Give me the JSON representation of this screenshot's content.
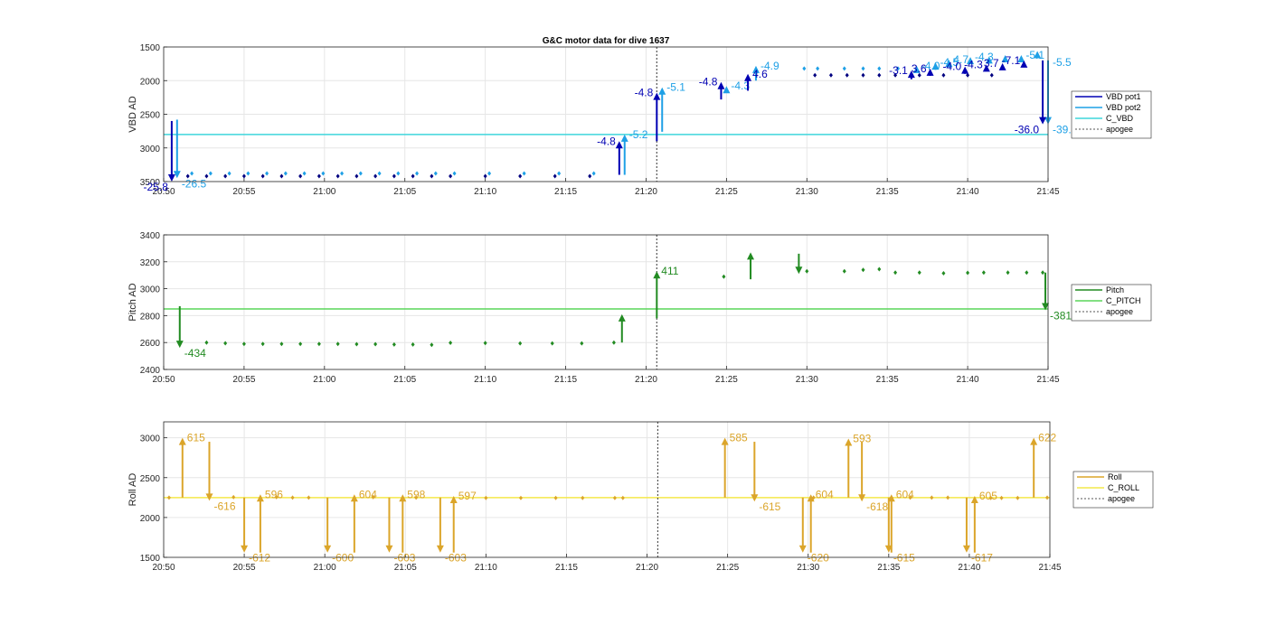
{
  "chart_data": [
    {
      "type": "scatter",
      "title": "G&C motor data for dive 1637",
      "ylabel": "VBD AD",
      "y_reversed": true,
      "ylim": [
        1500,
        3500
      ],
      "xlim": [
        "20:50",
        "21:45"
      ],
      "yticks": [
        1500,
        2000,
        2500,
        3000,
        3500
      ],
      "xticks": [
        "20:50",
        "20:55",
        "21:00",
        "21:05",
        "21:10",
        "21:15",
        "21:20",
        "21:25",
        "21:30",
        "21:35",
        "21:40",
        "21:45"
      ],
      "grid": true,
      "legend_position": "right",
      "legend": [
        "VBD pot1",
        "VBD pot2",
        "C_VBD",
        "apogee"
      ],
      "colors": {
        "pot1": "#0000b3",
        "pot2": "#1ea0e6",
        "c_line": "#3fd6dc",
        "apogee": "#555555",
        "dot_pot1": "#000080",
        "dot_pot2": "#1ea0e6"
      },
      "reference_line": 2800,
      "apogee_time": "21:20:40",
      "points_pot1": [
        [
          "20:51:30",
          3420
        ],
        [
          "20:52:40",
          3420
        ],
        [
          "20:53:50",
          3420
        ],
        [
          "20:55:00",
          3420
        ],
        [
          "20:56:10",
          3420
        ],
        [
          "20:57:20",
          3420
        ],
        [
          "20:58:30",
          3420
        ],
        [
          "20:59:40",
          3420
        ],
        [
          "21:00:50",
          3420
        ],
        [
          "21:02:00",
          3420
        ],
        [
          "21:03:10",
          3420
        ],
        [
          "21:04:20",
          3420
        ],
        [
          "21:05:30",
          3420
        ],
        [
          "21:06:40",
          3420
        ],
        [
          "21:07:50",
          3420
        ],
        [
          "21:10:00",
          3420
        ],
        [
          "21:12:10",
          3420
        ],
        [
          "21:14:20",
          3420
        ],
        [
          "21:16:30",
          3420
        ],
        [
          "21:30:30",
          1920
        ],
        [
          "21:31:30",
          1920
        ],
        [
          "21:32:30",
          1920
        ],
        [
          "21:33:30",
          1920
        ],
        [
          "21:34:30",
          1920
        ],
        [
          "21:35:30",
          1920
        ],
        [
          "21:37:00",
          1920
        ],
        [
          "21:38:30",
          1920
        ],
        [
          "21:40:00",
          1920
        ],
        [
          "21:41:30",
          1920
        ]
      ],
      "points_pot2": [
        [
          "20:51:45",
          3380
        ],
        [
          "20:52:55",
          3380
        ],
        [
          "20:54:05",
          3380
        ],
        [
          "20:55:15",
          3380
        ],
        [
          "20:56:25",
          3380
        ],
        [
          "20:57:35",
          3380
        ],
        [
          "20:58:45",
          3380
        ],
        [
          "20:59:55",
          3380
        ],
        [
          "21:01:05",
          3380
        ],
        [
          "21:02:15",
          3380
        ],
        [
          "21:03:25",
          3380
        ],
        [
          "21:04:35",
          3380
        ],
        [
          "21:05:45",
          3380
        ],
        [
          "21:06:55",
          3380
        ],
        [
          "21:08:05",
          3380
        ],
        [
          "21:10:15",
          3380
        ],
        [
          "21:12:25",
          3380
        ],
        [
          "21:14:35",
          3380
        ],
        [
          "21:16:45",
          3380
        ],
        [
          "21:29:50",
          1820
        ],
        [
          "21:30:40",
          1820
        ],
        [
          "21:32:20",
          1820
        ],
        [
          "21:33:30",
          1820
        ],
        [
          "21:34:30",
          1820
        ],
        [
          "21:35:40",
          1820
        ]
      ],
      "arrows_pot1": [
        {
          "t": "20:50:30",
          "from": 2600,
          "to": 3500,
          "label": "-25.8",
          "label_side": "left"
        },
        {
          "t": "21:18:20",
          "from": 3400,
          "to": 2900,
          "label": "-4.8",
          "label_side": "left"
        },
        {
          "t": "21:20:40",
          "from": 2900,
          "to": 2180,
          "label": "-4.8",
          "label_side": "left"
        },
        {
          "t": "21:24:40",
          "from": 2280,
          "to": 2020,
          "label": "-4.8",
          "label_side": "left"
        },
        {
          "t": "21:26:20",
          "from": 2150,
          "to": 1900,
          "label": "4.6",
          "label_side": "right"
        },
        {
          "t": "21:36:30",
          "from": 1980,
          "to": 1850,
          "label": "-3.1",
          "label_side": "left"
        },
        {
          "t": "21:37:40",
          "from": 1930,
          "to": 1820,
          "label": "3.6",
          "label_side": "left"
        },
        {
          "t": "21:39:50",
          "from": 1900,
          "to": 1790,
          "label": "-4.0",
          "label_side": "left"
        },
        {
          "t": "21:41:10",
          "from": 1850,
          "to": 1760,
          "label": "-4.3",
          "label_side": "left"
        },
        {
          "t": "21:42:10",
          "from": 1830,
          "to": 1740,
          "label": "3.7",
          "label_side": "left"
        },
        {
          "t": "21:43:30",
          "from": 1800,
          "to": 1700,
          "label": "-7.1",
          "label_side": "left"
        },
        {
          "t": "21:44:40",
          "from": 1700,
          "to": 2650,
          "label": "-36.0",
          "label_side": "left"
        }
      ],
      "arrows_pot2": [
        {
          "t": "20:50:50",
          "from": 2580,
          "to": 3450,
          "label": "-26.5",
          "label_side": "right"
        },
        {
          "t": "21:18:40",
          "from": 3400,
          "to": 2800,
          "label": "-5.2",
          "label_side": "right"
        },
        {
          "t": "21:21:00",
          "from": 2760,
          "to": 2100,
          "label": "-5.1",
          "label_side": "right"
        },
        {
          "t": "21:26:50",
          "from": 2000,
          "to": 1780,
          "label": "-4.9",
          "label_side": "right"
        },
        {
          "t": "21:25:00",
          "from": 2150,
          "to": 2080,
          "label": "-4.3",
          "label_side": "right"
        },
        {
          "t": "21:36:50",
          "from": 1860,
          "to": 1780,
          "label": "-4.0",
          "label_side": "right"
        },
        {
          "t": "21:38:00",
          "from": 1840,
          "to": 1730,
          "label": "-4.5",
          "label_side": "right"
        },
        {
          "t": "21:38:50",
          "from": 1800,
          "to": 1690,
          "label": "4.7",
          "label_side": "right"
        },
        {
          "t": "21:40:10",
          "from": 1750,
          "to": 1650,
          "label": "-4.3",
          "label_side": "right"
        },
        {
          "t": "21:41:20",
          "from": 1740,
          "to": 1640,
          "label": "",
          "label_side": "right"
        },
        {
          "t": "21:42:20",
          "from": 1710,
          "to": 1620,
          "label": "",
          "label_side": "right"
        },
        {
          "t": "21:43:20",
          "from": 1700,
          "to": 1620,
          "label": "-5.1",
          "label_side": "right"
        },
        {
          "t": "21:44:20",
          "from": 1650,
          "to": 1560,
          "label": "",
          "label_side": "right"
        },
        {
          "t": "21:45:00",
          "from": 1700,
          "to": 2650,
          "label": "-39.",
          "label_side": "right"
        },
        {
          "t": "21:45:00",
          "from": 1650,
          "to": 1650,
          "label": "-5.5",
          "label_side": "right"
        }
      ]
    },
    {
      "type": "scatter",
      "ylabel": "Pitch AD",
      "ylim": [
        2400,
        3400
      ],
      "xlim": [
        "20:50",
        "21:45"
      ],
      "yticks": [
        2400,
        2600,
        2800,
        3000,
        3200,
        3400
      ],
      "xticks": [
        "20:50",
        "20:55",
        "21:00",
        "21:05",
        "21:10",
        "21:15",
        "21:20",
        "21:25",
        "21:30",
        "21:35",
        "21:40",
        "21:45"
      ],
      "grid": true,
      "legend_position": "right",
      "legend": [
        "Pitch",
        "C_PITCH",
        "apogee"
      ],
      "colors": {
        "marker": "#228b22",
        "c_line": "#5ad65a",
        "apogee": "#555555"
      },
      "reference_line": 2850,
      "apogee_time": "21:20:40",
      "points": [
        [
          "20:52:40",
          2600
        ],
        [
          "20:53:50",
          2595
        ],
        [
          "20:55:00",
          2590
        ],
        [
          "20:56:10",
          2590
        ],
        [
          "20:57:20",
          2590
        ],
        [
          "20:58:30",
          2590
        ],
        [
          "20:59:40",
          2590
        ],
        [
          "21:00:50",
          2590
        ],
        [
          "21:02:00",
          2588
        ],
        [
          "21:03:10",
          2588
        ],
        [
          "21:04:20",
          2585
        ],
        [
          "21:05:30",
          2585
        ],
        [
          "21:06:40",
          2583
        ],
        [
          "21:07:50",
          2598
        ],
        [
          "21:10:00",
          2596
        ],
        [
          "21:12:10",
          2594
        ],
        [
          "21:14:10",
          2594
        ],
        [
          "21:16:00",
          2594
        ],
        [
          "21:18:00",
          2600
        ],
        [
          "21:24:50",
          3090
        ],
        [
          "21:30:00",
          3130
        ],
        [
          "21:32:20",
          3130
        ],
        [
          "21:33:30",
          3140
        ],
        [
          "21:34:30",
          3145
        ],
        [
          "21:35:30",
          3120
        ],
        [
          "21:37:00",
          3120
        ],
        [
          "21:38:30",
          3115
        ],
        [
          "21:40:00",
          3118
        ],
        [
          "21:41:00",
          3120
        ],
        [
          "21:42:30",
          3120
        ],
        [
          "21:43:40",
          3120
        ],
        [
          "21:44:40",
          3120
        ]
      ],
      "arrows": [
        {
          "t": "20:51:00",
          "from": 2870,
          "to": 2560,
          "label": "-434",
          "label_side": "right"
        },
        {
          "t": "21:18:30",
          "from": 2600,
          "to": 2810,
          "label": "",
          "label_side": "right"
        },
        {
          "t": "21:20:40",
          "from": 2780,
          "to": 3130,
          "label": "411",
          "label_side": "right"
        },
        {
          "t": "21:26:30",
          "from": 3070,
          "to": 3270,
          "label": "",
          "label_side": "right"
        },
        {
          "t": "21:29:30",
          "from": 3260,
          "to": 3110,
          "label": "",
          "label_side": "right"
        },
        {
          "t": "21:44:50",
          "from": 3120,
          "to": 2840,
          "label": "-381",
          "label_side": "right"
        }
      ]
    },
    {
      "type": "scatter",
      "ylabel": "Roll AD",
      "ylim": [
        1500,
        3200
      ],
      "xlim": [
        "20:50",
        "21:45"
      ],
      "yticks": [
        1500,
        2000,
        2500,
        3000
      ],
      "xticks": [
        "20:50",
        "20:55",
        "21:00",
        "21:05",
        "21:10",
        "21:15",
        "21:20",
        "21:25",
        "21:30",
        "21:35",
        "21:40",
        "21:45"
      ],
      "grid": true,
      "legend_position": "right",
      "legend": [
        "Roll",
        "C_ROLL",
        "apogee"
      ],
      "colors": {
        "marker": "#dba52a",
        "c_line": "#f4e84a",
        "apogee": "#555555"
      },
      "reference_line": 2250,
      "apogee_time": "21:20:40",
      "points": [
        [
          "20:50:20",
          2250
        ],
        [
          "20:54:20",
          2255
        ],
        [
          "20:57:00",
          2255
        ],
        [
          "20:58:00",
          2250
        ],
        [
          "20:59:00",
          2250
        ],
        [
          "21:03:00",
          2255
        ],
        [
          "21:05:40",
          2250
        ],
        [
          "21:10:00",
          2245
        ],
        [
          "21:12:10",
          2245
        ],
        [
          "21:14:20",
          2245
        ],
        [
          "21:16:00",
          2245
        ],
        [
          "21:18:00",
          2245
        ],
        [
          "21:18:30",
          2245
        ],
        [
          "21:30:20",
          2250
        ],
        [
          "21:35:10",
          2250
        ],
        [
          "21:36:20",
          2250
        ],
        [
          "21:37:40",
          2250
        ],
        [
          "21:38:40",
          2250
        ],
        [
          "21:41:20",
          2245
        ],
        [
          "21:42:00",
          2245
        ],
        [
          "21:43:00",
          2245
        ],
        [
          "21:44:50",
          2250
        ]
      ],
      "arrows": [
        {
          "t": "20:51:10",
          "from": 2250,
          "to": 3000,
          "label": "615",
          "label_side": "right"
        },
        {
          "t": "20:52:50",
          "from": 2950,
          "to": 2210,
          "label": "-616",
          "label_side": "right"
        },
        {
          "t": "20:55:00",
          "from": 2250,
          "to": 1560,
          "label": "-612",
          "label_side": "right"
        },
        {
          "t": "20:56:00",
          "from": 1560,
          "to": 2290,
          "label": "596",
          "label_side": "right"
        },
        {
          "t": "21:00:10",
          "from": 2250,
          "to": 1560,
          "label": "-600",
          "label_side": "right"
        },
        {
          "t": "21:01:50",
          "from": 1560,
          "to": 2290,
          "label": "604",
          "label_side": "right"
        },
        {
          "t": "21:04:00",
          "from": 2250,
          "to": 1560,
          "label": "-603",
          "label_side": "right"
        },
        {
          "t": "21:04:50",
          "from": 1560,
          "to": 2290,
          "label": "598",
          "label_side": "right"
        },
        {
          "t": "21:07:10",
          "from": 2250,
          "to": 1560,
          "label": "-603",
          "label_side": "right"
        },
        {
          "t": "21:08:00",
          "from": 1560,
          "to": 2270,
          "label": "597",
          "label_side": "right"
        },
        {
          "t": "21:24:50",
          "from": 2250,
          "to": 3000,
          "label": "585",
          "label_side": "right"
        },
        {
          "t": "21:26:40",
          "from": 2950,
          "to": 2200,
          "label": "-615",
          "label_side": "right"
        },
        {
          "t": "21:29:40",
          "from": 2250,
          "to": 1560,
          "label": "-620",
          "label_side": "right"
        },
        {
          "t": "21:30:10",
          "from": 1560,
          "to": 2290,
          "label": "604",
          "label_side": "right"
        },
        {
          "t": "21:32:30",
          "from": 2250,
          "to": 2990,
          "label": "593",
          "label_side": "right"
        },
        {
          "t": "21:33:20",
          "from": 2950,
          "to": 2200,
          "label": "-618",
          "label_side": "right"
        },
        {
          "t": "21:35:00",
          "from": 2250,
          "to": 1560,
          "label": "-615",
          "label_side": "right"
        },
        {
          "t": "21:35:10",
          "from": 1560,
          "to": 2290,
          "label": "604",
          "label_side": "right"
        },
        {
          "t": "21:39:50",
          "from": 2250,
          "to": 1560,
          "label": "-617",
          "label_side": "right"
        },
        {
          "t": "21:40:20",
          "from": 1560,
          "to": 2270,
          "label": "605",
          "label_side": "right"
        },
        {
          "t": "21:44:00",
          "from": 2250,
          "to": 3000,
          "label": "622",
          "label_side": "right"
        }
      ]
    }
  ]
}
